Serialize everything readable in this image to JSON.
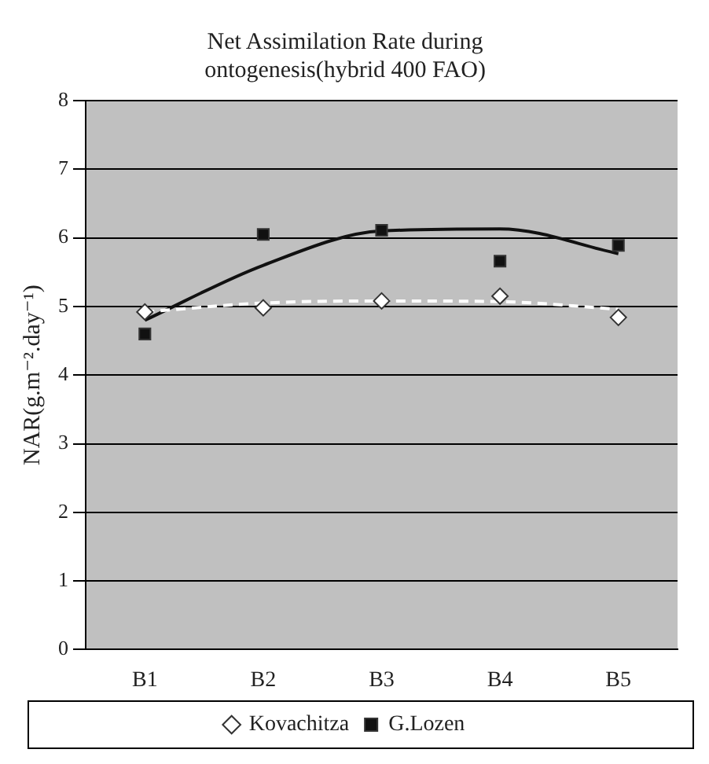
{
  "chart_data": {
    "type": "scatter",
    "title": [
      "Net Assimilation Rate during",
      "ontogenesis(hybrid 400 FAO)"
    ],
    "ylabel": "NAR(g.m⁻².day⁻¹)",
    "categories": [
      "B1",
      "B2",
      "B3",
      "B4",
      "B5"
    ],
    "series": [
      {
        "name": "Kovachitza",
        "marker": "diamond",
        "color": "#ffffff",
        "values": [
          4.92,
          4.98,
          5.08,
          5.15,
          4.84
        ]
      },
      {
        "name": "G.Lozen",
        "marker": "square",
        "color": "#111111",
        "values": [
          4.6,
          6.05,
          6.11,
          5.66,
          5.89
        ]
      },
      {
        "type": "line",
        "marker": "none",
        "line_style": "dashed",
        "color": "#ffffff",
        "values": [
          4.92,
          5.05,
          5.08,
          5.07,
          4.96
        ]
      },
      {
        "type": "line",
        "marker": "none",
        "line_style": "solid",
        "color": "#111111",
        "values": [
          4.8,
          5.6,
          6.1,
          6.13,
          5.77
        ]
      }
    ],
    "ylim": [
      0,
      8
    ],
    "yticks": [
      0,
      1,
      2,
      3,
      4,
      5,
      6,
      7,
      8
    ],
    "grid": "y",
    "legend": "bottom"
  }
}
